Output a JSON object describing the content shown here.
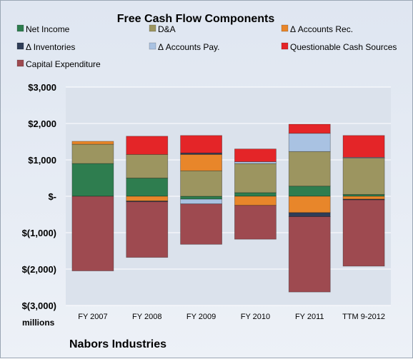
{
  "chart_data": {
    "type": "bar",
    "stacked": true,
    "title": "Free Cash Flow Components",
    "categories": [
      "FY 2007",
      "FY 2008",
      "FY 2009",
      "FY 2010",
      "FY 2011",
      "TTM 9-2012"
    ],
    "y_tick_labels": [
      "$3,000",
      "$2,000",
      "$1,000",
      "$-",
      "$(1,000)",
      "$(2,000)",
      "$(3,000)"
    ],
    "y_tick_values": [
      3000,
      2000,
      1000,
      0,
      -1000,
      -2000,
      -3000
    ],
    "ylim": [
      -3000,
      3000
    ],
    "units_label": "millions",
    "company": "Nabors Industries",
    "legend_placement": "top",
    "grid": true,
    "series": [
      {
        "name": "Net Income",
        "color": "#2e7d4f",
        "values": [
          900,
          500,
          -80,
          100,
          280,
          50
        ]
      },
      {
        "name": "D&A",
        "color": "#9c9560",
        "values": [
          530,
          650,
          700,
          800,
          950,
          1000
        ]
      },
      {
        "name": "Δ Accounts Rec.",
        "color": "#e8862a",
        "values": [
          80,
          -130,
          450,
          -250,
          -450,
          -80
        ]
      },
      {
        "name": "Δ Inventories",
        "color": "#2f3d58",
        "values": [
          0,
          -20,
          40,
          0,
          -110,
          -20
        ]
      },
      {
        "name": "Δ Accounts Pay.",
        "color": "#a9c2e2",
        "values": [
          0,
          0,
          -130,
          50,
          500,
          20
        ]
      },
      {
        "name": "Questionable Cash Sources",
        "color": "#e42528",
        "values": [
          0,
          500,
          480,
          350,
          250,
          600
        ]
      },
      {
        "name": "Capital Expenditure",
        "color": "#9e4a50",
        "values": [
          -2050,
          -1530,
          -1110,
          -930,
          -2070,
          -1820
        ]
      }
    ]
  }
}
